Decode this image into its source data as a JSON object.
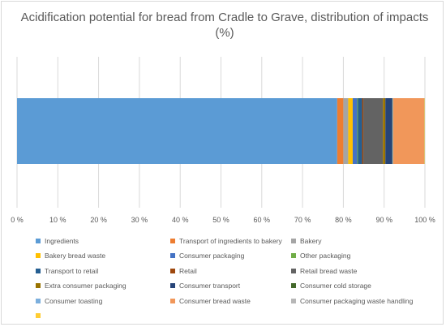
{
  "chart_data": {
    "type": "bar",
    "orientation": "horizontal",
    "stacked": true,
    "title": "Acidification potential for bread from Cradle to Grave, distribution of impacts (%)",
    "xlabel": "",
    "ylabel": "",
    "xlim": [
      0,
      100
    ],
    "x_ticks": [
      "0 %",
      "10 %",
      "20 %",
      "30 %",
      "40 %",
      "50 %",
      "60 %",
      "70 %",
      "80 %",
      "90 %",
      "100 %"
    ],
    "gridlines": true,
    "legend_position": "bottom",
    "series": [
      {
        "name": "Ingredients",
        "value": 78.5,
        "color": "#5B9BD5"
      },
      {
        "name": "Transport of ingredients to bakery",
        "value": 1.5,
        "color": "#ED7D31"
      },
      {
        "name": "Bakery",
        "value": 1.2,
        "color": "#A5A5A5"
      },
      {
        "name": "Bakery bread waste",
        "value": 1.1,
        "color": "#FFC000"
      },
      {
        "name": "Consumer packaging",
        "value": 1.1,
        "color": "#4472C4"
      },
      {
        "name": "Other packaging",
        "value": 0.2,
        "color": "#70AD47"
      },
      {
        "name": "Transport to retail",
        "value": 1.0,
        "color": "#255E91"
      },
      {
        "name": "Retail",
        "value": 0.3,
        "color": "#9E480E"
      },
      {
        "name": "Retail bread waste",
        "value": 4.8,
        "color": "#636363"
      },
      {
        "name": "Extra consumer packaging",
        "value": 0.6,
        "color": "#997300"
      },
      {
        "name": "Consumer transport",
        "value": 1.7,
        "color": "#264478"
      },
      {
        "name": "Consumer cold storage",
        "value": 0.1,
        "color": "#43682B"
      },
      {
        "name": "Consumer toasting",
        "value": 0.1,
        "color": "#7CAFDD"
      },
      {
        "name": "Consumer bread waste",
        "value": 7.6,
        "color": "#F1975A"
      },
      {
        "name": "Consumer packaging waste handling",
        "value": 0.1,
        "color": "#B7B7B7"
      },
      {
        "name": "",
        "value": 0.1,
        "color": "#FFCD33"
      }
    ]
  }
}
